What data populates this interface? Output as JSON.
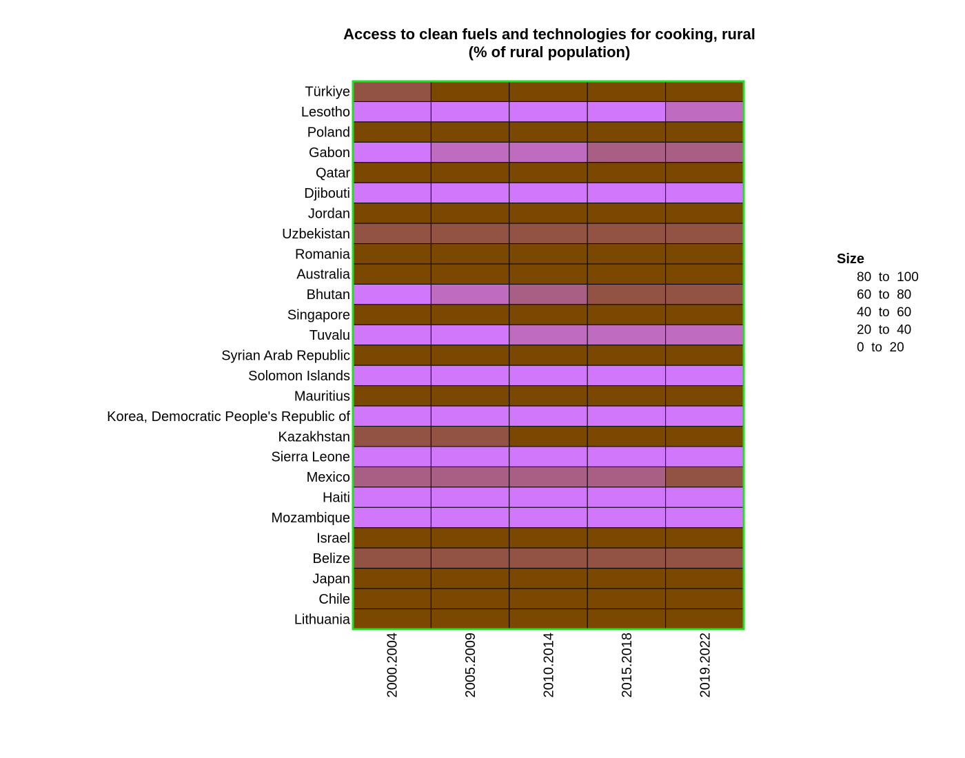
{
  "chart_data": {
    "type": "heatmap",
    "title": [
      "Access to clean fuels and technologies for cooking, rural",
      "(% of rural population)"
    ],
    "xlabel": "",
    "ylabel": "",
    "columns": [
      "2000.2004",
      "2005.2009",
      "2010.2014",
      "2015.2018",
      "2019.2022"
    ],
    "rows": [
      "Türkiye",
      "Lesotho",
      "Poland",
      "Gabon",
      "Qatar",
      "Djibouti",
      "Jordan",
      "Uzbekistan",
      "Romania",
      "Australia",
      "Bhutan",
      "Singapore",
      "Tuvalu",
      "Syrian Arab Republic",
      "Solomon Islands",
      "Mauritius",
      "Korea, Democratic People's Republic of",
      "Kazakhstan",
      "Sierra Leone",
      "Mexico",
      "Haiti",
      "Mozambique",
      "Israel",
      "Belize",
      "Japan",
      "Chile",
      "Lithuania"
    ],
    "values": [
      [
        70,
        90,
        90,
        90,
        90
      ],
      [
        5,
        10,
        10,
        10,
        30
      ],
      [
        90,
        90,
        90,
        90,
        90
      ],
      [
        10,
        30,
        30,
        50,
        50
      ],
      [
        90,
        90,
        90,
        90,
        90
      ],
      [
        5,
        5,
        5,
        5,
        5
      ],
      [
        90,
        90,
        90,
        90,
        90
      ],
      [
        70,
        70,
        70,
        70,
        70
      ],
      [
        90,
        90,
        90,
        90,
        90
      ],
      [
        90,
        90,
        90,
        90,
        90
      ],
      [
        10,
        30,
        50,
        70,
        70
      ],
      [
        90,
        90,
        90,
        90,
        90
      ],
      [
        5,
        5,
        30,
        30,
        30
      ],
      [
        90,
        90,
        90,
        90,
        90
      ],
      [
        5,
        5,
        5,
        5,
        5
      ],
      [
        90,
        90,
        90,
        90,
        90
      ],
      [
        5,
        5,
        5,
        5,
        5
      ],
      [
        70,
        70,
        90,
        90,
        90
      ],
      [
        5,
        5,
        5,
        5,
        5
      ],
      [
        50,
        50,
        50,
        50,
        70
      ],
      [
        5,
        5,
        5,
        5,
        5
      ],
      [
        5,
        5,
        5,
        5,
        5
      ],
      [
        90,
        90,
        90,
        90,
        90
      ],
      [
        70,
        70,
        70,
        70,
        70
      ],
      [
        90,
        90,
        90,
        90,
        90
      ],
      [
        90,
        90,
        90,
        90,
        90
      ],
      [
        90,
        90,
        90,
        90,
        90
      ]
    ],
    "legend": {
      "title": "Size",
      "position": "right",
      "bins": [
        {
          "from": 80,
          "to": 100,
          "label": "80  to  100",
          "color": "#7a4800"
        },
        {
          "from": 60,
          "to": 80,
          "label": "60  to  80",
          "color": "#925244"
        },
        {
          "from": 40,
          "to": 60,
          "label": "40  to  60",
          "color": "#a85f83"
        },
        {
          "from": 20,
          "to": 40,
          "label": "20  to  40",
          "color": "#bf6bc0"
        },
        {
          "from": 0,
          "to": 20,
          "label": "0  to  20",
          "color": "#d077fb"
        }
      ]
    },
    "border_color": "#22dd22",
    "cell_stroke": "#000000"
  }
}
